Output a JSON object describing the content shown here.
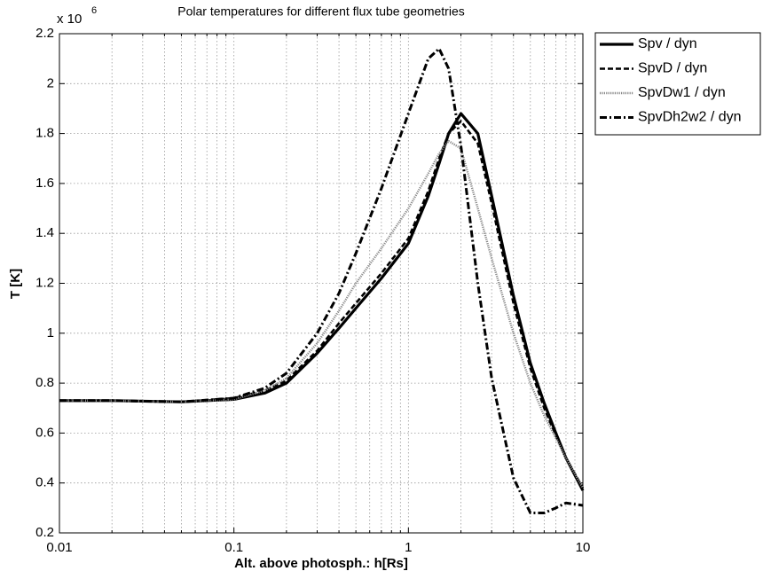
{
  "chart_data": {
    "type": "line",
    "title": "Polar temperatures for different flux tube geometries",
    "xlabel": "Alt. above photosph.: h[Rs]",
    "ylabel": "T [K]",
    "y_multiplier": "x 10",
    "y_multiplier_exponent": "6",
    "xscale": "log",
    "xlim": [
      0.01,
      10
    ],
    "xticks": [
      0.01,
      0.1,
      1,
      10
    ],
    "x_minor_ticks": [
      0.02,
      0.03,
      0.04,
      0.05,
      0.06,
      0.07,
      0.08,
      0.09,
      0.2,
      0.3,
      0.4,
      0.5,
      0.6,
      0.7,
      0.8,
      0.9,
      2,
      3,
      4,
      5,
      6,
      7,
      8,
      9
    ],
    "ylim": [
      0.2,
      2.2
    ],
    "yticks": [
      0.2,
      0.4,
      0.6,
      0.8,
      1,
      1.2,
      1.4,
      1.6,
      1.8,
      2,
      2.2
    ],
    "grid": true,
    "legend": "outside-top-right",
    "x": [
      0.01,
      0.02,
      0.05,
      0.1,
      0.15,
      0.2,
      0.3,
      0.4,
      0.5,
      0.7,
      1,
      1.3,
      1.5,
      1.7,
      2,
      2.5,
      3,
      4,
      5,
      6,
      7,
      8,
      10
    ],
    "series": [
      {
        "name": "Spv / dyn",
        "color": "#000000",
        "style": "solid",
        "values": [
          0.73,
          0.73,
          0.725,
          0.735,
          0.76,
          0.8,
          0.92,
          1.02,
          1.1,
          1.22,
          1.36,
          1.55,
          1.68,
          1.8,
          1.88,
          1.8,
          1.55,
          1.15,
          0.88,
          0.72,
          0.6,
          0.5,
          0.37
        ]
      },
      {
        "name": "SpvD / dyn",
        "color": "#000000",
        "style": "dashed",
        "values": [
          0.73,
          0.73,
          0.725,
          0.74,
          0.77,
          0.81,
          0.93,
          1.04,
          1.12,
          1.24,
          1.38,
          1.57,
          1.7,
          1.8,
          1.85,
          1.76,
          1.52,
          1.12,
          0.86,
          0.7,
          0.59,
          0.5,
          0.38
        ]
      },
      {
        "name": "SpvDw1 / dyn",
        "color": "#888888",
        "style": "dotted",
        "values": [
          0.73,
          0.73,
          0.725,
          0.735,
          0.77,
          0.82,
          0.96,
          1.09,
          1.2,
          1.34,
          1.5,
          1.64,
          1.72,
          1.77,
          1.74,
          1.5,
          1.3,
          1.0,
          0.8,
          0.67,
          0.58,
          0.5,
          0.38
        ]
      },
      {
        "name": "SpvDh2w2 / dyn",
        "color": "#000000",
        "style": "dashdot",
        "values": [
          0.73,
          0.73,
          0.725,
          0.74,
          0.78,
          0.84,
          1.0,
          1.16,
          1.32,
          1.58,
          1.88,
          2.1,
          2.14,
          2.06,
          1.75,
          1.2,
          0.82,
          0.42,
          0.28,
          0.28,
          0.3,
          0.32,
          0.31
        ]
      }
    ]
  }
}
